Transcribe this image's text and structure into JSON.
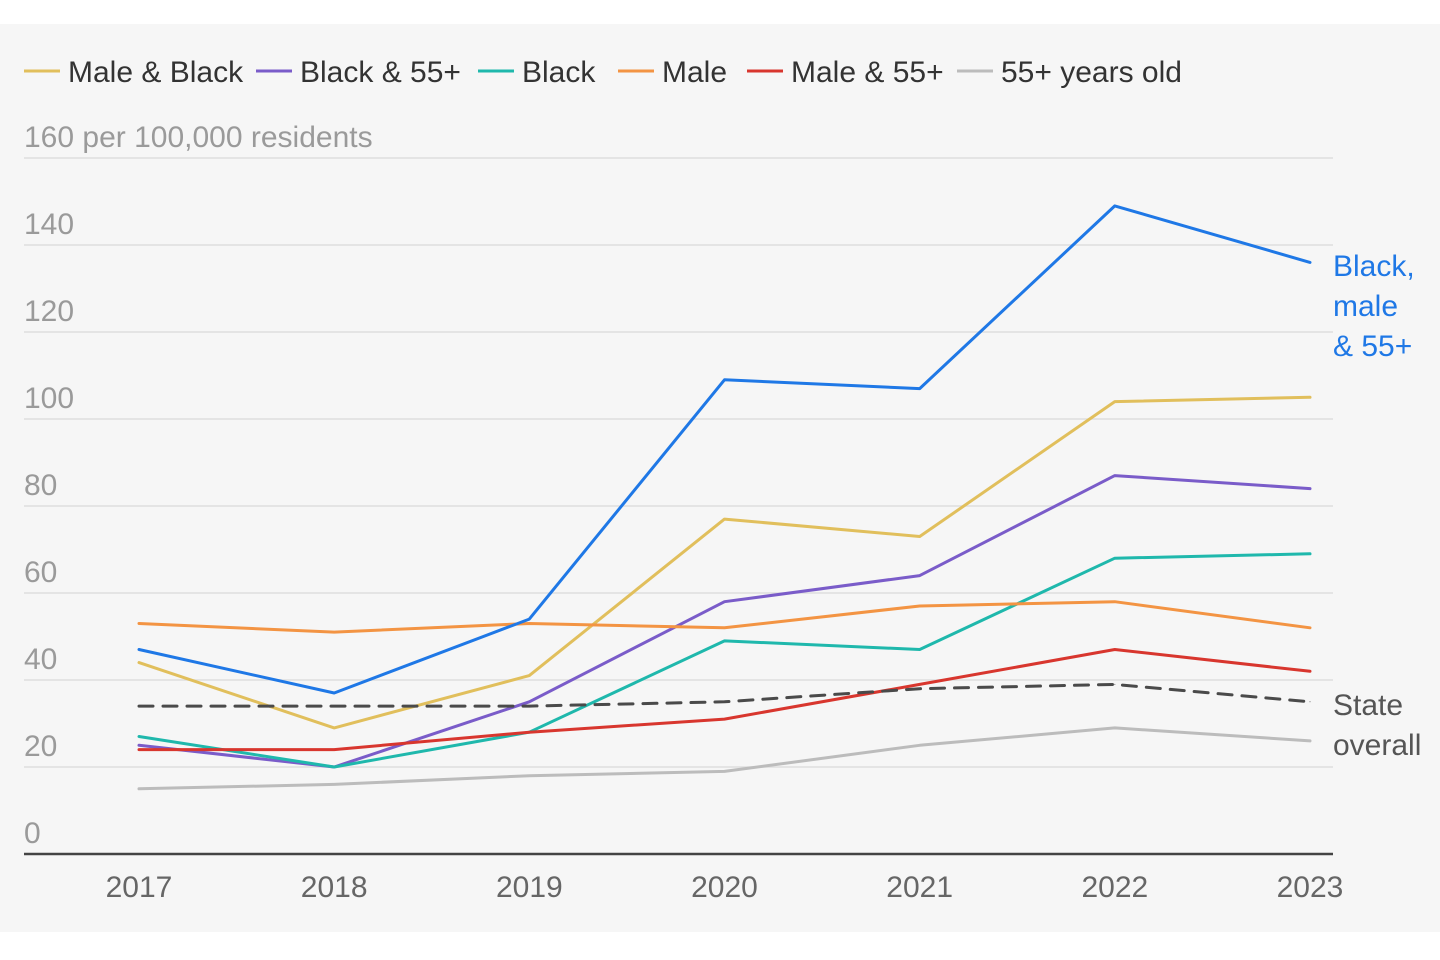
{
  "chart_data": {
    "type": "line",
    "x": [
      "2017",
      "2018",
      "2019",
      "2020",
      "2021",
      "2022",
      "2023"
    ],
    "ylim": [
      0,
      160
    ],
    "yticks": [
      "0",
      "20",
      "40",
      "60",
      "80",
      "100",
      "120",
      "140"
    ],
    "ytop_label": "160 per 100,000 residents",
    "grid": true,
    "legend_position": "top",
    "series": [
      {
        "name": "Male & Black",
        "color": "#e1bf5c",
        "dashed": false,
        "values": [
          44,
          29,
          41,
          77,
          73,
          104,
          105
        ]
      },
      {
        "name": "Black & 55+",
        "color": "#7a5cc9",
        "dashed": false,
        "values": [
          25,
          20,
          35,
          58,
          64,
          87,
          84
        ]
      },
      {
        "name": "Black",
        "color": "#1fb8ac",
        "dashed": false,
        "values": [
          27,
          20,
          28,
          49,
          47,
          68,
          69
        ]
      },
      {
        "name": "Male",
        "color": "#f39443",
        "dashed": false,
        "values": [
          53,
          51,
          53,
          52,
          57,
          58,
          52
        ]
      },
      {
        "name": "Male & 55+",
        "color": "#d8362e",
        "dashed": false,
        "values": [
          24,
          24,
          28,
          31,
          39,
          47,
          42
        ]
      },
      {
        "name": "55+ years old",
        "color": "#bcbcbc",
        "dashed": false,
        "values": [
          15,
          16,
          18,
          19,
          25,
          29,
          26
        ]
      },
      {
        "name": "",
        "color": "#4a4a4a",
        "dashed": true,
        "values": [
          34,
          34,
          34,
          35,
          38,
          39,
          35
        ]
      },
      {
        "name": "",
        "color": "#1f78e6",
        "dashed": false,
        "values": [
          47,
          37,
          54,
          109,
          107,
          149,
          136
        ]
      }
    ],
    "annotations": [
      {
        "lines": [
          "Black,",
          "male",
          "& 55+"
        ],
        "color": "#1f78e6",
        "series_index": 7
      },
      {
        "lines": [
          "State",
          "overall"
        ],
        "color": "#555555",
        "series_index": 6
      }
    ]
  }
}
